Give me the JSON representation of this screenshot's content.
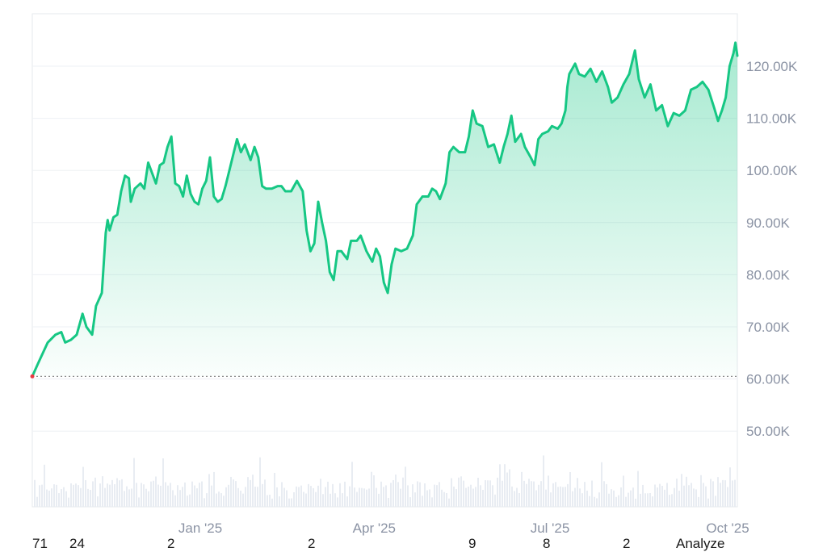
{
  "chart_data": {
    "type": "area",
    "title": "",
    "xlabel": "",
    "ylabel": "",
    "x_range": [
      "2024-10-06",
      "2025-10-06"
    ],
    "ylim": [
      40000,
      130000
    ],
    "y_ticks": [
      {
        "value": 50000,
        "label": "50.00K"
      },
      {
        "value": 60000,
        "label": "60.00K"
      },
      {
        "value": 70000,
        "label": "70.00K"
      },
      {
        "value": 80000,
        "label": "80.00K"
      },
      {
        "value": 90000,
        "label": "90.00K"
      },
      {
        "value": 100000,
        "label": "100.00K"
      },
      {
        "value": 110000,
        "label": "110.00K"
      },
      {
        "value": 120000,
        "label": "120.00K"
      }
    ],
    "x_ticks": [
      {
        "date": "2025-01-01",
        "label": "Jan '25"
      },
      {
        "date": "2025-04-01",
        "label": "Apr '25"
      },
      {
        "date": "2025-07-01",
        "label": "Jul '25"
      },
      {
        "date": "2025-10-01",
        "label": "Oct '25"
      }
    ],
    "baseline_value": 60500,
    "grid": true,
    "line_color": "#16c784",
    "baseline_color": "#8b8b8b",
    "volume_color": "#e8ecf2",
    "series": [
      {
        "points": [
          [
            "2024-10-06",
            60500
          ],
          [
            "2024-10-09",
            63000
          ],
          [
            "2024-10-14",
            67000
          ],
          [
            "2024-10-18",
            68500
          ],
          [
            "2024-10-21",
            69000
          ],
          [
            "2024-10-23",
            67000
          ],
          [
            "2024-10-26",
            67500
          ],
          [
            "2024-10-29",
            68500
          ],
          [
            "2024-11-01",
            72500
          ],
          [
            "2024-11-03",
            70000
          ],
          [
            "2024-11-06",
            68500
          ],
          [
            "2024-11-08",
            74000
          ],
          [
            "2024-11-11",
            76500
          ],
          [
            "2024-11-13",
            88000
          ],
          [
            "2024-11-14",
            90500
          ],
          [
            "2024-11-15",
            88500
          ],
          [
            "2024-11-17",
            91000
          ],
          [
            "2024-11-19",
            91500
          ],
          [
            "2024-11-21",
            96000
          ],
          [
            "2024-11-23",
            99000
          ],
          [
            "2024-11-25",
            98500
          ],
          [
            "2024-11-26",
            94000
          ],
          [
            "2024-11-28",
            96500
          ],
          [
            "2024-12-01",
            97500
          ],
          [
            "2024-12-03",
            96500
          ],
          [
            "2024-12-05",
            101500
          ],
          [
            "2024-12-07",
            99500
          ],
          [
            "2024-12-09",
            97500
          ],
          [
            "2024-12-11",
            101000
          ],
          [
            "2024-12-13",
            101500
          ],
          [
            "2024-12-15",
            104500
          ],
          [
            "2024-12-17",
            106500
          ],
          [
            "2024-12-19",
            97500
          ],
          [
            "2024-12-21",
            97000
          ],
          [
            "2024-12-23",
            95000
          ],
          [
            "2024-12-25",
            99000
          ],
          [
            "2024-12-27",
            95500
          ],
          [
            "2024-12-29",
            94000
          ],
          [
            "2024-12-31",
            93500
          ],
          [
            "2025-01-02",
            96500
          ],
          [
            "2025-01-04",
            98000
          ],
          [
            "2025-01-06",
            102500
          ],
          [
            "2025-01-08",
            95000
          ],
          [
            "2025-01-10",
            94000
          ],
          [
            "2025-01-12",
            94500
          ],
          [
            "2025-01-14",
            97000
          ],
          [
            "2025-01-16",
            100000
          ],
          [
            "2025-01-20",
            106000
          ],
          [
            "2025-01-22",
            103500
          ],
          [
            "2025-01-24",
            105000
          ],
          [
            "2025-01-27",
            102000
          ],
          [
            "2025-01-29",
            104500
          ],
          [
            "2025-01-31",
            102500
          ],
          [
            "2025-02-02",
            97000
          ],
          [
            "2025-02-04",
            96500
          ],
          [
            "2025-02-07",
            96500
          ],
          [
            "2025-02-10",
            97000
          ],
          [
            "2025-02-12",
            97000
          ],
          [
            "2025-02-14",
            96000
          ],
          [
            "2025-02-17",
            96000
          ],
          [
            "2025-02-20",
            98000
          ],
          [
            "2025-02-23",
            96000
          ],
          [
            "2025-02-25",
            88500
          ],
          [
            "2025-02-27",
            84500
          ],
          [
            "2025-03-01",
            86000
          ],
          [
            "2025-03-03",
            94000
          ],
          [
            "2025-03-05",
            90000
          ],
          [
            "2025-03-07",
            86500
          ],
          [
            "2025-03-09",
            80500
          ],
          [
            "2025-03-11",
            79000
          ],
          [
            "2025-03-13",
            84500
          ],
          [
            "2025-03-15",
            84500
          ],
          [
            "2025-03-18",
            83000
          ],
          [
            "2025-03-20",
            86500
          ],
          [
            "2025-03-23",
            86500
          ],
          [
            "2025-03-25",
            87500
          ],
          [
            "2025-03-28",
            84500
          ],
          [
            "2025-03-31",
            82500
          ],
          [
            "2025-04-02",
            85000
          ],
          [
            "2025-04-04",
            83500
          ],
          [
            "2025-04-06",
            78500
          ],
          [
            "2025-04-08",
            76500
          ],
          [
            "2025-04-10",
            82000
          ],
          [
            "2025-04-12",
            85000
          ],
          [
            "2025-04-15",
            84500
          ],
          [
            "2025-04-18",
            85000
          ],
          [
            "2025-04-21",
            87500
          ],
          [
            "2025-04-23",
            93500
          ],
          [
            "2025-04-26",
            95000
          ],
          [
            "2025-04-29",
            95000
          ],
          [
            "2025-05-01",
            96500
          ],
          [
            "2025-05-03",
            96000
          ],
          [
            "2025-05-05",
            94500
          ],
          [
            "2025-05-08",
            97500
          ],
          [
            "2025-05-10",
            103500
          ],
          [
            "2025-05-12",
            104500
          ],
          [
            "2025-05-15",
            103500
          ],
          [
            "2025-05-18",
            103500
          ],
          [
            "2025-05-20",
            106500
          ],
          [
            "2025-05-22",
            111500
          ],
          [
            "2025-05-24",
            109000
          ],
          [
            "2025-05-27",
            108500
          ],
          [
            "2025-05-30",
            104500
          ],
          [
            "2025-06-02",
            105000
          ],
          [
            "2025-06-05",
            101500
          ],
          [
            "2025-06-07",
            104500
          ],
          [
            "2025-06-09",
            107000
          ],
          [
            "2025-06-11",
            110500
          ],
          [
            "2025-06-13",
            105500
          ],
          [
            "2025-06-16",
            107000
          ],
          [
            "2025-06-18",
            104500
          ],
          [
            "2025-06-21",
            102500
          ],
          [
            "2025-06-23",
            101000
          ],
          [
            "2025-06-25",
            106000
          ],
          [
            "2025-06-27",
            107000
          ],
          [
            "2025-06-30",
            107500
          ],
          [
            "2025-07-02",
            108500
          ],
          [
            "2025-07-05",
            108000
          ],
          [
            "2025-07-07",
            109000
          ],
          [
            "2025-07-09",
            111500
          ],
          [
            "2025-07-10",
            116000
          ],
          [
            "2025-07-11",
            118500
          ],
          [
            "2025-07-14",
            120500
          ],
          [
            "2025-07-16",
            118500
          ],
          [
            "2025-07-19",
            118000
          ],
          [
            "2025-07-22",
            119500
          ],
          [
            "2025-07-25",
            117000
          ],
          [
            "2025-07-28",
            119000
          ],
          [
            "2025-07-31",
            116000
          ],
          [
            "2025-08-02",
            113000
          ],
          [
            "2025-08-05",
            114000
          ],
          [
            "2025-08-08",
            116500
          ],
          [
            "2025-08-11",
            118500
          ],
          [
            "2025-08-13",
            121500
          ],
          [
            "2025-08-14",
            123000
          ],
          [
            "2025-08-16",
            117500
          ],
          [
            "2025-08-19",
            114000
          ],
          [
            "2025-08-22",
            116500
          ],
          [
            "2025-08-25",
            111500
          ],
          [
            "2025-08-28",
            112500
          ],
          [
            "2025-08-31",
            108500
          ],
          [
            "2025-09-03",
            111000
          ],
          [
            "2025-09-06",
            110500
          ],
          [
            "2025-09-09",
            111500
          ],
          [
            "2025-09-12",
            115500
          ],
          [
            "2025-09-15",
            116000
          ],
          [
            "2025-09-18",
            117000
          ],
          [
            "2025-09-21",
            115500
          ],
          [
            "2025-09-24",
            112000
          ],
          [
            "2025-09-26",
            109500
          ],
          [
            "2025-09-28",
            111500
          ],
          [
            "2025-09-30",
            114000
          ],
          [
            "2025-10-02",
            120000
          ],
          [
            "2025-10-04",
            122500
          ],
          [
            "2025-10-05",
            124500
          ],
          [
            "2025-10-06",
            122000
          ]
        ]
      }
    ],
    "bottom_labels": [
      "71",
      "24",
      "2",
      "2",
      "9",
      "8",
      "2",
      "Analyze"
    ]
  }
}
